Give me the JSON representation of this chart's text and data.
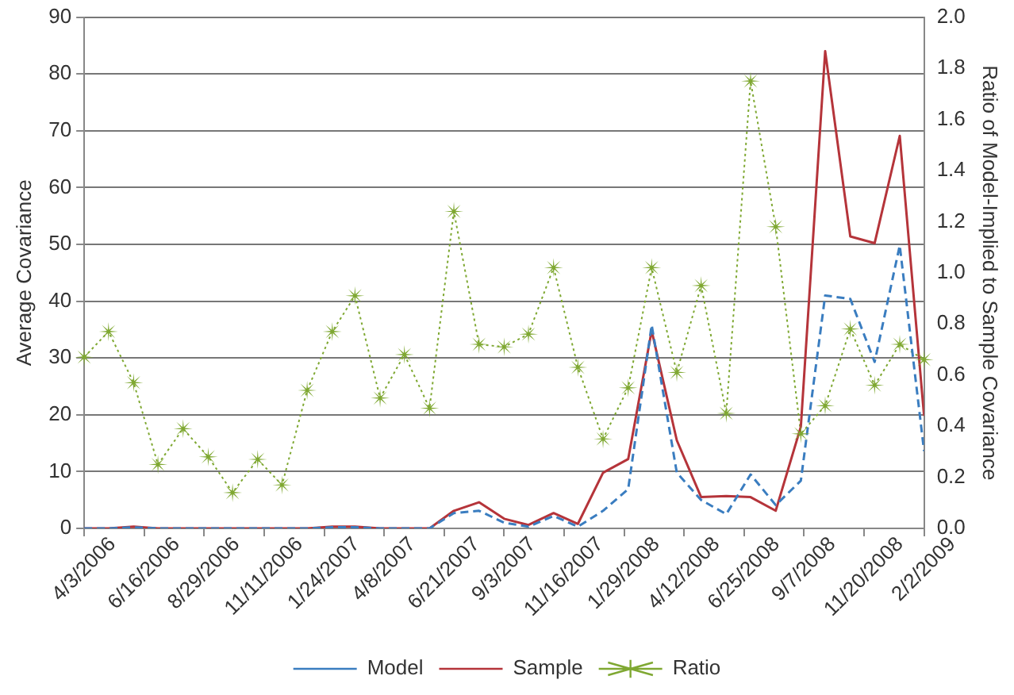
{
  "chart_data": {
    "type": "line",
    "ylabel": "Average Covariance",
    "y2label": "Ratio of Model-Implied to Sample Covariance",
    "x": [
      "2006-04-03",
      "2006-05-03",
      "2006-06-03",
      "2006-07-03",
      "2006-08-03",
      "2006-09-03",
      "2006-10-03",
      "2006-11-03",
      "2006-12-03",
      "2007-01-03",
      "2007-02-03",
      "2007-03-03",
      "2007-04-03",
      "2007-05-03",
      "2007-06-03",
      "2007-07-03",
      "2007-08-03",
      "2007-09-03",
      "2007-10-03",
      "2007-11-03",
      "2007-12-03",
      "2008-01-03",
      "2008-02-03",
      "2008-03-03",
      "2008-04-03",
      "2008-05-03",
      "2008-06-03",
      "2008-07-03",
      "2008-08-03",
      "2008-09-03",
      "2008-10-03",
      "2008-11-03",
      "2008-12-03",
      "2009-01-03",
      "2009-02-02"
    ],
    "series": [
      {
        "name": "Model",
        "color": "#3a7dc0",
        "marker": "none",
        "line_style": "dashed",
        "values": [
          0,
          0,
          0.2,
          0,
          0,
          0,
          0,
          0,
          0,
          0,
          0.2,
          0.2,
          0,
          0,
          0,
          2.7,
          3.1,
          1.0,
          0.3,
          2.2,
          0.3,
          3.1,
          6.9,
          35.8,
          9.8,
          5.0,
          2.5,
          9.5,
          4.1,
          8.4,
          41.0,
          40.4,
          29.3,
          49.8,
          13.6
        ]
      },
      {
        "name": "Sample",
        "color": "#b5343a",
        "marker": "none",
        "line_style": "solid",
        "values": [
          0,
          0,
          0.3,
          0,
          0,
          0,
          0,
          0,
          0,
          0,
          0.3,
          0.3,
          0,
          0,
          0,
          3.1,
          4.6,
          1.7,
          0.6,
          2.7,
          0.8,
          9.8,
          12.2,
          34.8,
          15.5,
          5.5,
          5.7,
          5.5,
          3.1,
          17.9,
          84.0,
          51.4,
          50.2,
          69.1,
          19.8
        ]
      },
      {
        "name": "Ratio",
        "color": "#7fa832",
        "marker": "star",
        "line_style": "dotted",
        "axis": "y2",
        "values": [
          0.67,
          0.77,
          0.57,
          0.25,
          0.39,
          0.28,
          0.14,
          0.27,
          0.17,
          0.54,
          0.77,
          0.91,
          0.51,
          0.68,
          0.47,
          1.24,
          0.72,
          0.71,
          0.76,
          1.02,
          0.63,
          0.35,
          0.55,
          1.02,
          0.61,
          0.95,
          0.45,
          1.75,
          1.18,
          0.37,
          0.48,
          0.78,
          0.56,
          0.72,
          0.66
        ]
      }
    ],
    "xlim": [
      "2006-04-03",
      "2009-02-02"
    ],
    "xticks": [
      {
        "value": "2006-04-03",
        "label": "4/3/2006"
      },
      {
        "value": "2006-06-16",
        "label": "6/16/2006"
      },
      {
        "value": "2006-08-29",
        "label": "8/29/2006"
      },
      {
        "value": "2006-11-11",
        "label": "11/11/2006"
      },
      {
        "value": "2007-01-24",
        "label": "1/24/2007"
      },
      {
        "value": "2007-04-08",
        "label": "4/8/2007"
      },
      {
        "value": "2007-06-21",
        "label": "6/21/2007"
      },
      {
        "value": "2007-09-03",
        "label": "9/3/2007"
      },
      {
        "value": "2007-11-16",
        "label": "11/16/2007"
      },
      {
        "value": "2008-01-29",
        "label": "1/29/2008"
      },
      {
        "value": "2008-04-12",
        "label": "4/12/2008"
      },
      {
        "value": "2008-06-25",
        "label": "6/25/2008"
      },
      {
        "value": "2008-09-07",
        "label": "9/7/2008"
      },
      {
        "value": "2008-11-20",
        "label": "11/20/2008"
      },
      {
        "value": "2009-02-02",
        "label": "2/2/2009"
      }
    ],
    "ylim": [
      0,
      90
    ],
    "yticks": [
      0,
      10,
      20,
      30,
      40,
      50,
      60,
      70,
      80,
      90
    ],
    "y2lim": [
      0,
      2
    ],
    "y2ticks": [
      {
        "value": 0,
        "label": "0.0"
      },
      {
        "value": 0.2,
        "label": "0.2"
      },
      {
        "value": 0.4,
        "label": "0.4"
      },
      {
        "value": 0.6,
        "label": "0.6"
      },
      {
        "value": 0.8,
        "label": "0.8"
      },
      {
        "value": 1,
        "label": "1.0"
      },
      {
        "value": 1.2,
        "label": "1.2"
      },
      {
        "value": 1.4,
        "label": "1.4"
      },
      {
        "value": 1.6,
        "label": "1.6"
      },
      {
        "value": 1.8,
        "label": "1.8"
      },
      {
        "value": 2,
        "label": "2.0"
      }
    ],
    "grid": "y",
    "legend": "bottom"
  }
}
